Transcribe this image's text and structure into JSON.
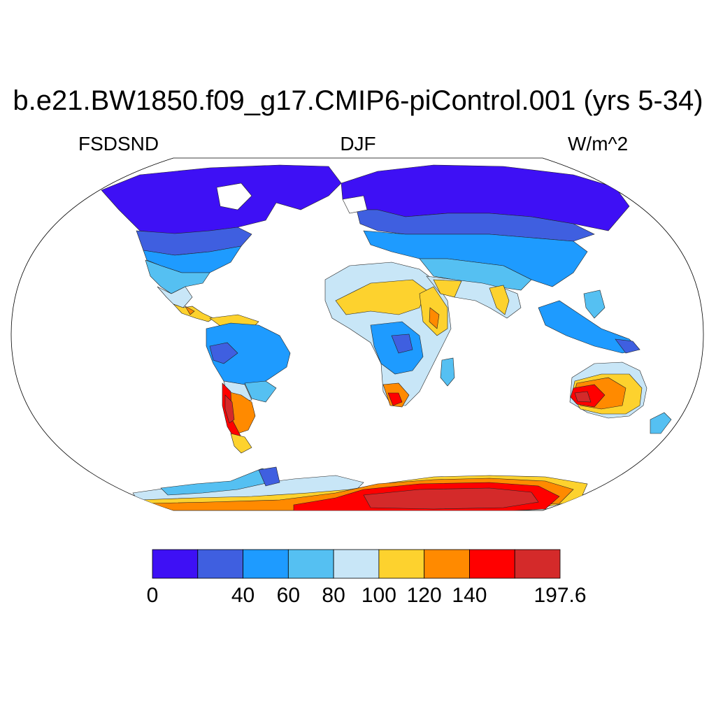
{
  "title": "b.e21.BW1850.f09_g17.CMIP6-piControl.001 (yrs 5-34)",
  "left_label": "FSDSND",
  "center_label": "DJF",
  "right_label": "W/m^2",
  "colorbar": {
    "colors": [
      "#3e10f5",
      "#3f5fe0",
      "#1e9bff",
      "#55c0f2",
      "#c8e6f7",
      "#fdd22e",
      "#ff8a00",
      "#ff0000",
      "#d42a2a"
    ],
    "tick_labels": [
      {
        "text": "0",
        "boundary": 0
      },
      {
        "text": "40",
        "boundary": 2
      },
      {
        "text": "60",
        "boundary": 3
      },
      {
        "text": "80",
        "boundary": 4
      },
      {
        "text": "100",
        "boundary": 5
      },
      {
        "text": "120",
        "boundary": 6
      },
      {
        "text": "140",
        "boundary": 7
      },
      {
        "text": "197.6",
        "boundary": 9
      }
    ]
  }
}
